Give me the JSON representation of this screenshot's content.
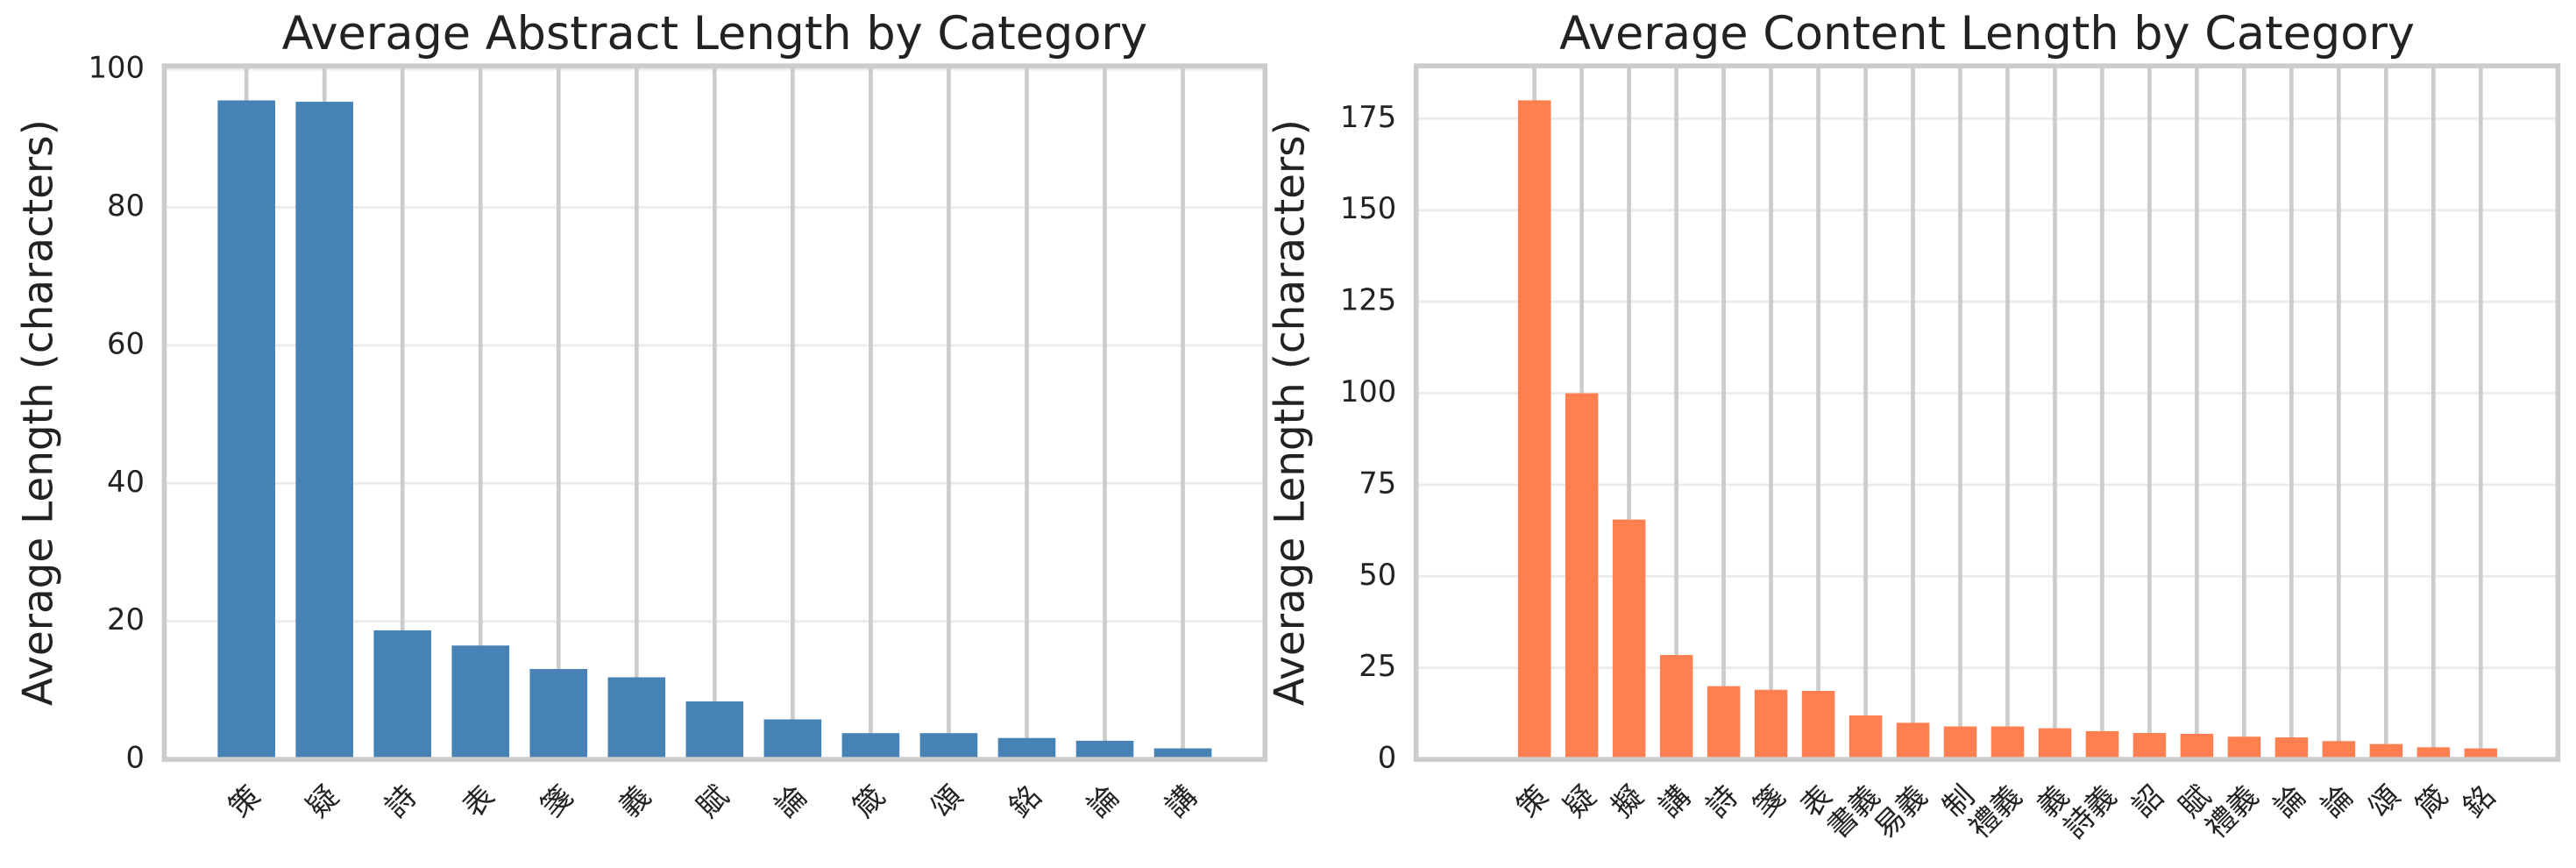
{
  "chart_data": [
    {
      "type": "bar",
      "title": "Average Abstract Length by Category",
      "ylabel": "Average Length (characters)",
      "categories": [
        "策",
        "疑",
        "詩",
        "表",
        "箋",
        "義",
        "賦",
        "論",
        "箴",
        "頌",
        "銘",
        "論",
        "講"
      ],
      "values": [
        95.5,
        95.3,
        18.7,
        16.5,
        13.1,
        11.9,
        8.4,
        5.8,
        3.8,
        3.8,
        3.1,
        2.7,
        1.6
      ],
      "color": "#4682b4",
      "ylim": [
        0,
        100.5
      ],
      "yticks": [
        0,
        20,
        40,
        60,
        80,
        100
      ],
      "grid": true
    },
    {
      "type": "bar",
      "title": "Average Content Length by Category",
      "ylabel": "Average Length (characters)",
      "categories": [
        "策",
        "疑",
        "擬",
        "講",
        "詩",
        "箋",
        "表",
        "書義",
        "易義",
        "制",
        "禮義",
        "義",
        "詩義",
        "詔",
        "賦",
        "禮義",
        "論",
        "論",
        "頌",
        "箴",
        "銘"
      ],
      "values": [
        180,
        100,
        65.5,
        28.5,
        20,
        19,
        18.7,
        12,
        10,
        9,
        9,
        8.5,
        7.7,
        7.2,
        7,
        6.2,
        6,
        5,
        4.2,
        3.3,
        3
      ],
      "color": "#ff7f50",
      "ylim": [
        0,
        189.4
      ],
      "yticks": [
        0,
        25,
        50,
        75,
        100,
        125,
        150,
        175
      ],
      "grid": true
    }
  ]
}
